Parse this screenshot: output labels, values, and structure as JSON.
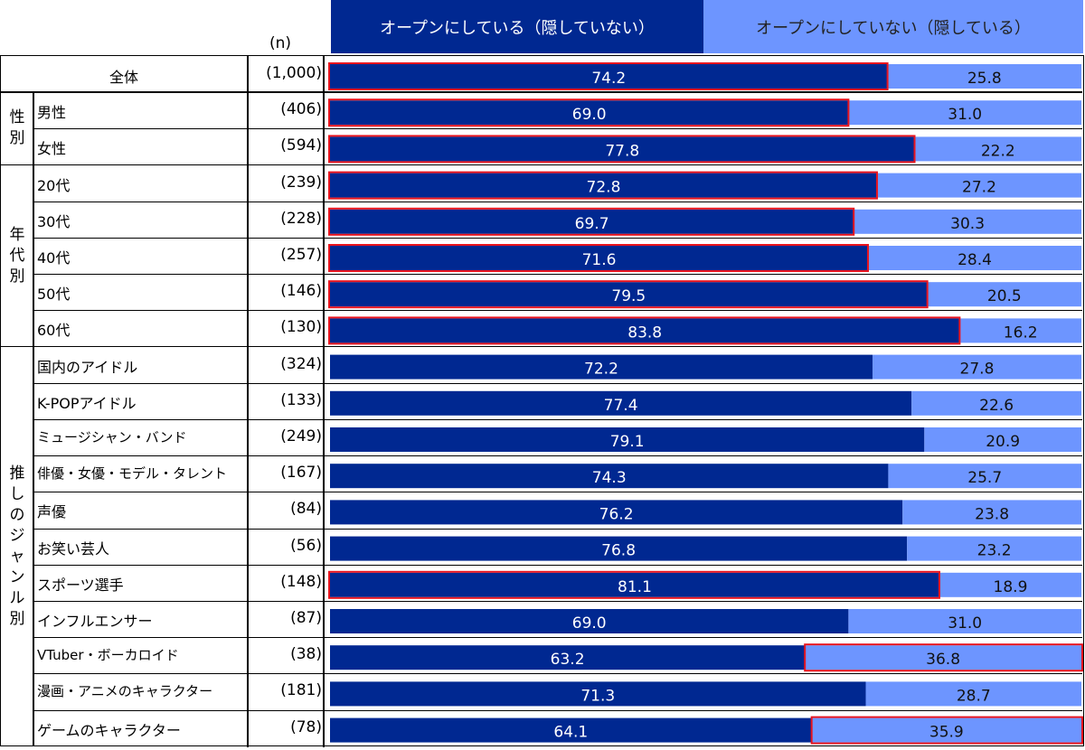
{
  "chart_data": {
    "type": "bar",
    "orientation": "horizontal",
    "stacked": true,
    "unit": "%",
    "n_header": "(n)",
    "legend": [
      "オープンにしている（隠していない）",
      "オープンにしていない（隠している）"
    ],
    "colors": {
      "open": "#002891",
      "closed": "#6d95ff",
      "highlight": "#e8141e"
    },
    "xlim": [
      0,
      100
    ],
    "groups": [
      {
        "name": "",
        "rows": [
          0
        ]
      },
      {
        "name": "性別",
        "rows": [
          1,
          2
        ]
      },
      {
        "name": "年代別",
        "rows": [
          3,
          4,
          5,
          6,
          7
        ]
      },
      {
        "name": "推しのジャンル別",
        "rows": [
          8,
          9,
          10,
          11,
          12,
          13,
          14,
          15,
          16,
          17,
          18
        ]
      }
    ],
    "rows": [
      {
        "label": "全体",
        "n": "(1,000)",
        "open": 74.2,
        "closed": 25.8,
        "highlight": "open"
      },
      {
        "label": "男性",
        "n": "(406)",
        "open": 69.0,
        "closed": 31.0,
        "highlight": "open"
      },
      {
        "label": "女性",
        "n": "(594)",
        "open": 77.8,
        "closed": 22.2,
        "highlight": "open"
      },
      {
        "label": "20代",
        "n": "(239)",
        "open": 72.8,
        "closed": 27.2,
        "highlight": "open"
      },
      {
        "label": "30代",
        "n": "(228)",
        "open": 69.7,
        "closed": 30.3,
        "highlight": "open"
      },
      {
        "label": "40代",
        "n": "(257)",
        "open": 71.6,
        "closed": 28.4,
        "highlight": "open"
      },
      {
        "label": "50代",
        "n": "(146)",
        "open": 79.5,
        "closed": 20.5,
        "highlight": "open"
      },
      {
        "label": "60代",
        "n": "(130)",
        "open": 83.8,
        "closed": 16.2,
        "highlight": "open"
      },
      {
        "label": "国内のアイドル",
        "n": "(324)",
        "open": 72.2,
        "closed": 27.8,
        "highlight": ""
      },
      {
        "label": "K-POPアイドル",
        "n": "(133)",
        "open": 77.4,
        "closed": 22.6,
        "highlight": ""
      },
      {
        "label": "ミュージシャン・バンド",
        "n": "(249)",
        "open": 79.1,
        "closed": 20.9,
        "highlight": ""
      },
      {
        "label": "俳優・女優・モデル・タレント",
        "n": "(167)",
        "open": 74.3,
        "closed": 25.7,
        "highlight": ""
      },
      {
        "label": "声優",
        "n": "(84)",
        "open": 76.2,
        "closed": 23.8,
        "highlight": ""
      },
      {
        "label": "お笑い芸人",
        "n": "(56)",
        "open": 76.8,
        "closed": 23.2,
        "highlight": ""
      },
      {
        "label": "スポーツ選手",
        "n": "(148)",
        "open": 81.1,
        "closed": 18.9,
        "highlight": "open"
      },
      {
        "label": "インフルエンサー",
        "n": "(87)",
        "open": 69.0,
        "closed": 31.0,
        "highlight": ""
      },
      {
        "label": "VTuber・ボーカロイド",
        "n": "(38)",
        "open": 63.2,
        "closed": 36.8,
        "highlight": "closed"
      },
      {
        "label": "漫画・アニメのキャラクター",
        "n": "(181)",
        "open": 71.3,
        "closed": 28.7,
        "highlight": ""
      },
      {
        "label": "ゲームのキャラクター",
        "n": "(78)",
        "open": 64.1,
        "closed": 35.9,
        "highlight": "closed"
      }
    ]
  }
}
